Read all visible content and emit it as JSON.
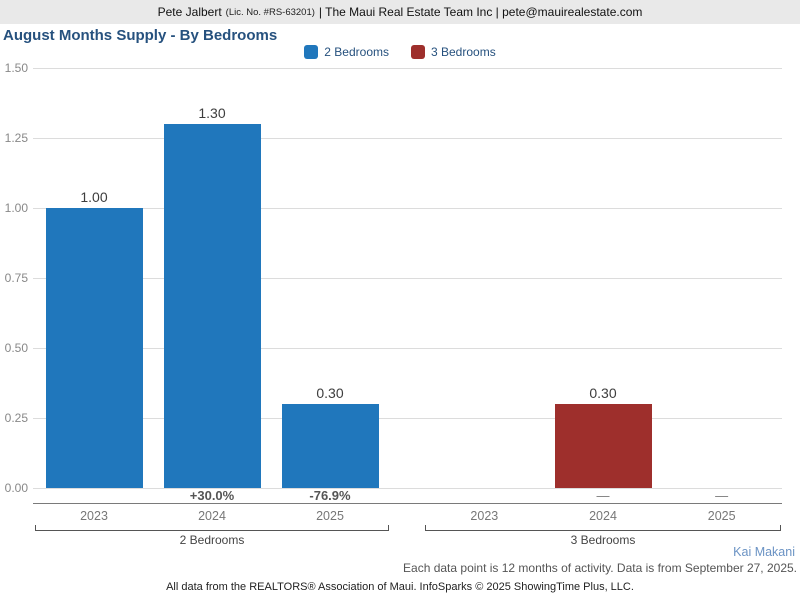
{
  "header": {
    "agent": "Pete Jalbert",
    "license": "(Lic. No. #RS-63201)",
    "rest": "| The Maui Real Estate Team Inc | pete@mauirealestate.com"
  },
  "title": "August Months Supply - By Bedrooms",
  "legend": {
    "items": [
      {
        "label": "2 Bedrooms",
        "color": "#2077bc"
      },
      {
        "label": "3 Bedrooms",
        "color": "#9e2f2c"
      }
    ]
  },
  "chart_data": {
    "type": "bar",
    "title": "August Months Supply - By Bedrooms",
    "categories": [
      "2023",
      "2024",
      "2025"
    ],
    "series": [
      {
        "name": "2 Bedrooms",
        "color": "#2077bc",
        "values": [
          1.0,
          1.3,
          0.3
        ],
        "labels": [
          "1.00",
          "1.30",
          "0.30"
        ],
        "pct_change": [
          null,
          "+30.0%",
          "-76.9%"
        ]
      },
      {
        "name": "3 Bedrooms",
        "color": "#9e2f2c",
        "values": [
          null,
          0.3,
          null
        ],
        "labels": [
          null,
          "0.30",
          null
        ],
        "pct_change": [
          null,
          "—",
          "—"
        ]
      }
    ],
    "ylim": [
      0,
      1.5
    ],
    "ytick_step": 0.25,
    "yticks": [
      "0.00",
      "0.25",
      "0.50",
      "0.75",
      "1.00",
      "1.25",
      "1.50"
    ],
    "grid": true,
    "legend_position": "top center"
  },
  "footer": {
    "watermark": "Kai Makani",
    "note": "Each data point is 12 months of activity. Data is from September 27, 2025.",
    "attribution": "All data from the REALTORS® Association of Maui. InfoSparks © 2025 ShowingTime Plus, LLC."
  }
}
